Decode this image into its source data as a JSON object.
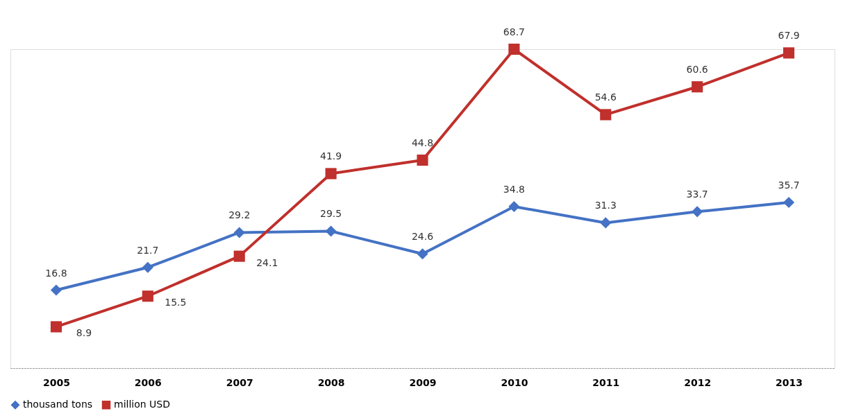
{
  "chart_data": {
    "type": "line",
    "categories": [
      "2005",
      "2006",
      "2007",
      "2008",
      "2009",
      "2010",
      "2011",
      "2012",
      "2013"
    ],
    "series": [
      {
        "name": "thousand tons",
        "color": "#4472c4",
        "marker": "diamond",
        "values": [
          16.8,
          21.7,
          29.2,
          29.5,
          24.6,
          34.8,
          31.3,
          33.7,
          35.7
        ]
      },
      {
        "name": "million USD",
        "color": "#c0302c",
        "marker": "square",
        "values": [
          8.9,
          15.5,
          24.1,
          41.9,
          44.8,
          68.7,
          54.6,
          60.6,
          67.9
        ]
      }
    ],
    "data_labels": true,
    "legend": "bottom",
    "grid": false
  }
}
